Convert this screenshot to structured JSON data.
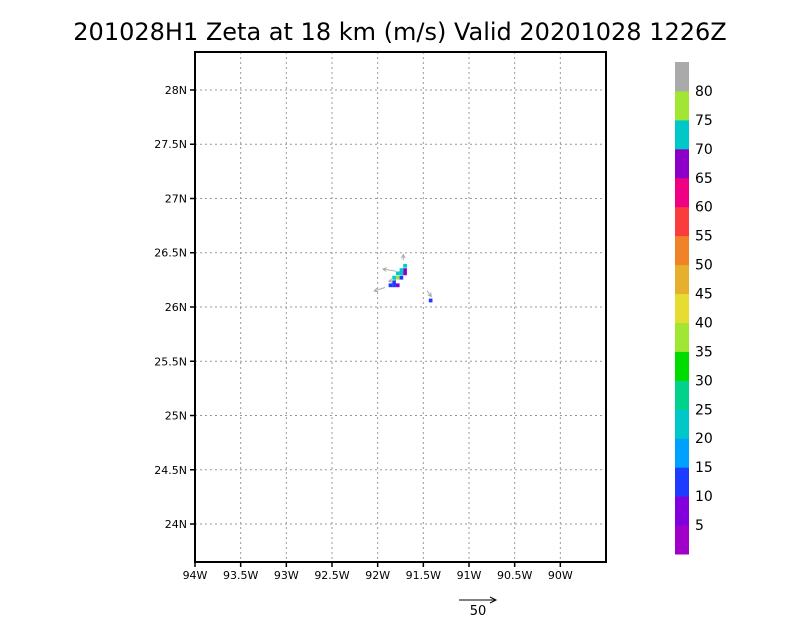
{
  "chart_data": {
    "type": "heatmap",
    "title": "201028H1 Zeta at 18 km (m/s) Valid 20201028 1226Z",
    "xlim": [
      -94.0,
      -89.5
    ],
    "ylim": [
      23.65,
      28.35
    ],
    "x_ticks": [
      {
        "value": -94.0,
        "label": "94W"
      },
      {
        "value": -93.5,
        "label": "93.5W"
      },
      {
        "value": -93.0,
        "label": "93W"
      },
      {
        "value": -92.5,
        "label": "92.5W"
      },
      {
        "value": -92.0,
        "label": "92W"
      },
      {
        "value": -91.5,
        "label": "91.5W"
      },
      {
        "value": -91.0,
        "label": "91W"
      },
      {
        "value": -90.5,
        "label": "90.5W"
      },
      {
        "value": -90.0,
        "label": "90W"
      }
    ],
    "y_ticks": [
      {
        "value": 24.0,
        "label": "24N"
      },
      {
        "value": 24.5,
        "label": "24.5N"
      },
      {
        "value": 25.0,
        "label": "25N"
      },
      {
        "value": 25.5,
        "label": "25.5N"
      },
      {
        "value": 26.0,
        "label": "26N"
      },
      {
        "value": 26.5,
        "label": "26.5N"
      },
      {
        "value": 27.0,
        "label": "27N"
      },
      {
        "value": 27.5,
        "label": "27.5N"
      },
      {
        "value": 28.0,
        "label": "28N"
      }
    ],
    "grid": true,
    "colorbar": {
      "placement": "right",
      "colors": [
        "#a000c8",
        "#8200dc",
        "#1e3cff",
        "#00a0ff",
        "#00c8c8",
        "#00d28c",
        "#00dc00",
        "#a0e632",
        "#e6dc32",
        "#e6af2d",
        "#f08228",
        "#fa3c3c",
        "#f00082",
        "#8c00c8",
        "#00c8c8",
        "#a0e632",
        "#aaaaaa"
      ],
      "labels": [
        "5",
        "10",
        "15",
        "20",
        "25",
        "30",
        "35",
        "40",
        "45",
        "50",
        "55",
        "60",
        "65",
        "70",
        "75",
        "80"
      ]
    },
    "cells": [
      {
        "lon": -91.7,
        "lat": 26.38,
        "value": 72
      },
      {
        "lon": -91.7,
        "lat": 26.34,
        "value": 9
      },
      {
        "lon": -91.74,
        "lat": 26.34,
        "value": 22
      },
      {
        "lon": -91.78,
        "lat": 26.31,
        "value": 23
      },
      {
        "lon": -91.74,
        "lat": 26.31,
        "value": 73
      },
      {
        "lon": -91.7,
        "lat": 26.31,
        "value": 67
      },
      {
        "lon": -91.82,
        "lat": 26.27,
        "value": 22
      },
      {
        "lon": -91.78,
        "lat": 26.27,
        "value": 77
      },
      {
        "lon": -91.74,
        "lat": 26.27,
        "value": 12
      },
      {
        "lon": -91.82,
        "lat": 26.23,
        "value": 11
      },
      {
        "lon": -91.86,
        "lat": 26.2,
        "value": 12
      },
      {
        "lon": -91.82,
        "lat": 26.2,
        "value": 11
      },
      {
        "lon": -91.78,
        "lat": 26.2,
        "value": 8
      },
      {
        "lon": -91.42,
        "lat": 26.06,
        "value": 11
      }
    ],
    "vectors": [
      {
        "lon": -91.72,
        "lat": 26.43,
        "u": 0,
        "v": 8
      },
      {
        "lon": -91.8,
        "lat": 26.33,
        "u": -18,
        "v": 3
      },
      {
        "lon": -91.92,
        "lat": 26.18,
        "u": -15,
        "v": -5
      },
      {
        "lon": -91.8,
        "lat": 26.25,
        "u": -10,
        "v": -2
      },
      {
        "lon": -91.46,
        "lat": 26.15,
        "u": 6,
        "v": -8
      }
    ],
    "reference_vector": {
      "label": "50",
      "magnitude": 50
    }
  }
}
